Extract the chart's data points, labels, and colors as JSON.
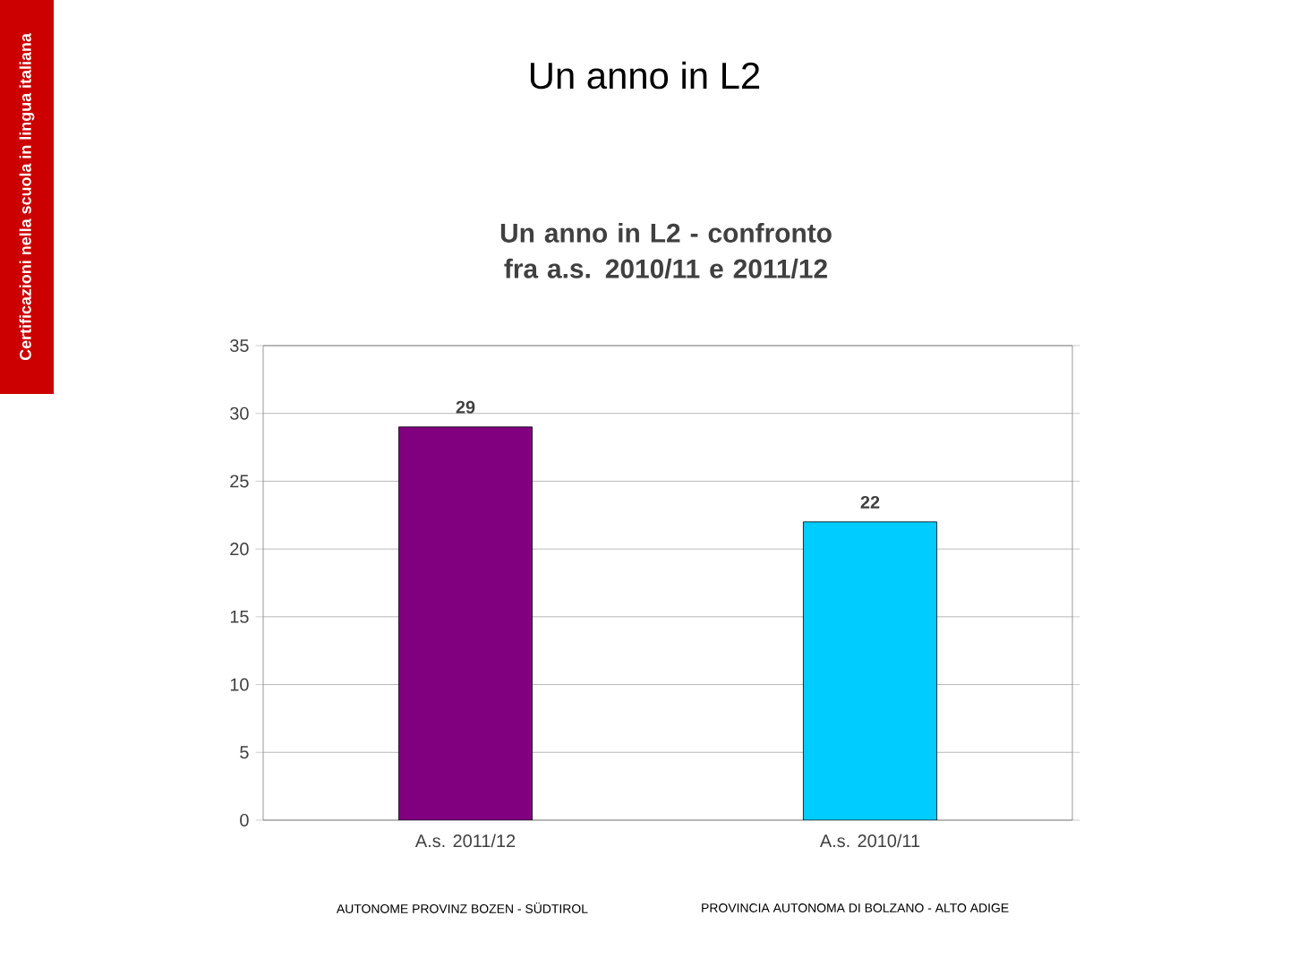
{
  "chart_data": {
    "type": "bar",
    "title": "Un anno in L2",
    "subtitle": "Un anno in L2 - confronto fra a.s. 2010/11 e 2011/12",
    "categories": [
      "A.s. 2011/12",
      "A.s. 2010/11"
    ],
    "values": [
      29,
      22
    ],
    "colors": [
      "#800080",
      "#00ccff"
    ],
    "ylim": [
      0,
      35
    ],
    "yticks": [
      0,
      5,
      10,
      15,
      20,
      25,
      30,
      35
    ],
    "grid": "y",
    "data_labels": true,
    "annotations": [
      "Certificazioni nella scuola in lingua italiana",
      "AUTONOME PROVINZ BOZEN - SÜDTIROL",
      "PROVINCIA AUTONOMA DI BOLZANO - ALTO ADIGE"
    ]
  }
}
